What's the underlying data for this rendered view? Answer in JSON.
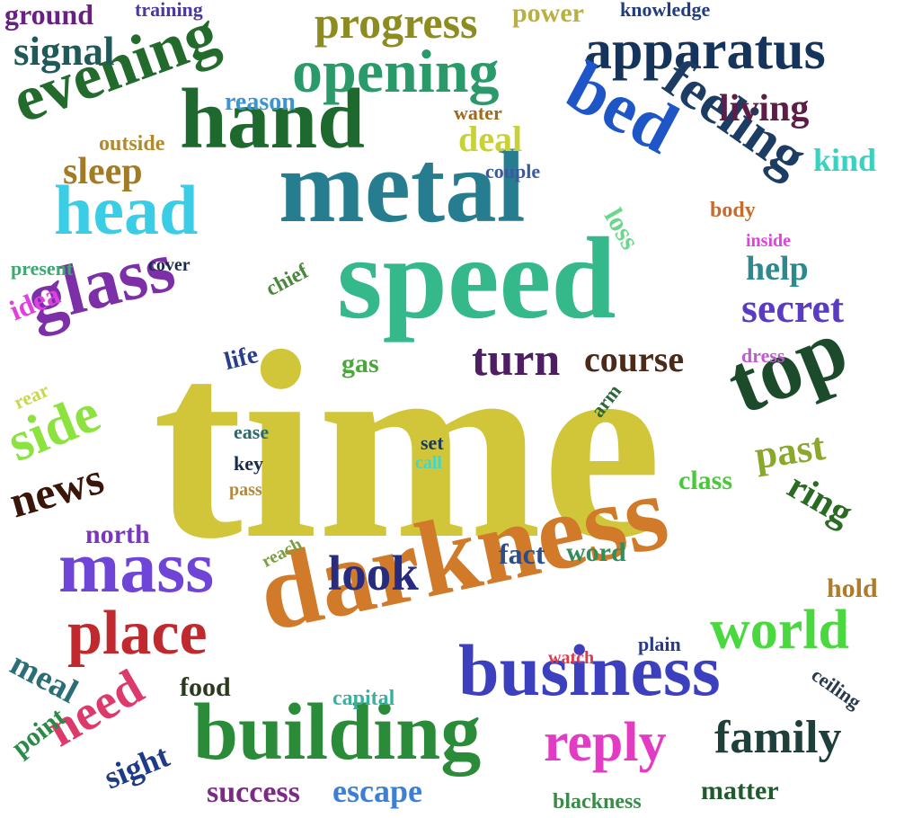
{
  "words": [
    {
      "text": "time",
      "color": "#d1c639"
    },
    {
      "text": "speed",
      "color": "#35b98a"
    },
    {
      "text": "darkness",
      "color": "#d07a2a"
    },
    {
      "text": "metal",
      "color": "#267d90"
    },
    {
      "text": "hand",
      "color": "#1e6a2e"
    },
    {
      "text": "building",
      "color": "#2a8b38"
    },
    {
      "text": "business",
      "color": "#3c3fbe"
    },
    {
      "text": "head",
      "color": "#3ccde6"
    },
    {
      "text": "glass",
      "color": "#7d2fa8"
    },
    {
      "text": "evening",
      "color": "#236b2c"
    },
    {
      "text": "top",
      "color": "#1c4b2c"
    },
    {
      "text": "mass",
      "color": "#6f45d8"
    },
    {
      "text": "apparatus",
      "color": "#14345c"
    },
    {
      "text": "opening",
      "color": "#2b9a6a"
    },
    {
      "text": "bed",
      "color": "#1e56c8"
    },
    {
      "text": "feeling",
      "color": "#1c3c64"
    },
    {
      "text": "place",
      "color": "#c02a2e"
    },
    {
      "text": "world",
      "color": "#4ad83f"
    },
    {
      "text": "reply",
      "color": "#e23cc4"
    },
    {
      "text": "side",
      "color": "#8ce23e"
    },
    {
      "text": "family",
      "color": "#1f3f3a"
    },
    {
      "text": "news",
      "color": "#3a1608"
    },
    {
      "text": "look",
      "color": "#282c7e"
    },
    {
      "text": "progress",
      "color": "#8c8c20"
    },
    {
      "text": "turn",
      "color": "#4e1e63"
    },
    {
      "text": "secret",
      "color": "#5a3bc2"
    },
    {
      "text": "need",
      "color": "#dc3a6a"
    },
    {
      "text": "past",
      "color": "#8aa82b"
    },
    {
      "text": "signal",
      "color": "#1f5a58"
    },
    {
      "text": "living",
      "color": "#5c1e46"
    },
    {
      "text": "course",
      "color": "#4a2a18"
    },
    {
      "text": "ring",
      "color": "#2a6a22"
    },
    {
      "text": "sleep",
      "color": "#a27b25"
    },
    {
      "text": "help",
      "color": "#2b8a8e"
    },
    {
      "text": "deal",
      "color": "#c8d238"
    },
    {
      "text": "meal",
      "color": "#2a6e78"
    },
    {
      "text": "success",
      "color": "#7b2a86"
    },
    {
      "text": "escape",
      "color": "#3e7fd6"
    },
    {
      "text": "matter",
      "color": "#1f5a2c"
    },
    {
      "text": "sight",
      "color": "#1e3a8a"
    },
    {
      "text": "food",
      "color": "#2a3a1c"
    },
    {
      "text": "point",
      "color": "#2a8b48"
    },
    {
      "text": "kind",
      "color": "#3ad1c0"
    },
    {
      "text": "hold",
      "color": "#b07a2b"
    },
    {
      "text": "ground",
      "color": "#6a2080"
    },
    {
      "text": "gas",
      "color": "#4aa83a"
    },
    {
      "text": "fact",
      "color": "#2c4c8a"
    },
    {
      "text": "word",
      "color": "#2f8e5a"
    },
    {
      "text": "life",
      "color": "#2a3f8c"
    },
    {
      "text": "north",
      "color": "#7a36c0"
    },
    {
      "text": "idea",
      "color": "#e040e0"
    },
    {
      "text": "class",
      "color": "#4ac83a"
    },
    {
      "text": "power",
      "color": "#b8b040"
    },
    {
      "text": "knowledge",
      "color": "#233c7a"
    },
    {
      "text": "reason",
      "color": "#3a94d6"
    },
    {
      "text": "outside",
      "color": "#b08a30"
    },
    {
      "text": "loss",
      "color": "#6ad88a"
    },
    {
      "text": "ceiling",
      "color": "#2a3a4e"
    },
    {
      "text": "blackness",
      "color": "#3a8a4a"
    },
    {
      "text": "capital",
      "color": "#3ab0a0"
    },
    {
      "text": "body",
      "color": "#c86a2a"
    },
    {
      "text": "arm",
      "color": "#2a6a3a"
    },
    {
      "text": "present",
      "color": "#3aaa70"
    },
    {
      "text": "chief",
      "color": "#4a8a3a"
    },
    {
      "text": "watch",
      "color": "#e03a4a"
    },
    {
      "text": "plain",
      "color": "#2a3a8a"
    },
    {
      "text": "dress",
      "color": "#c05ad0"
    },
    {
      "text": "training",
      "color": "#4a3a9a"
    },
    {
      "text": "water",
      "color": "#a06a1a"
    },
    {
      "text": "couple",
      "color": "#3a5aa0"
    },
    {
      "text": "cover",
      "color": "#1a2a4a"
    },
    {
      "text": "ease",
      "color": "#2a6a6a"
    },
    {
      "text": "key",
      "color": "#1a2a4a"
    },
    {
      "text": "rear",
      "color": "#c8d850"
    },
    {
      "text": "set",
      "color": "#1a3a5a"
    },
    {
      "text": "call",
      "color": "#3ad8d0"
    },
    {
      "text": "inside",
      "color": "#e040e0"
    },
    {
      "text": "pass",
      "color": "#b08a40"
    },
    {
      "text": "reach",
      "color": "#7aa040"
    }
  ]
}
